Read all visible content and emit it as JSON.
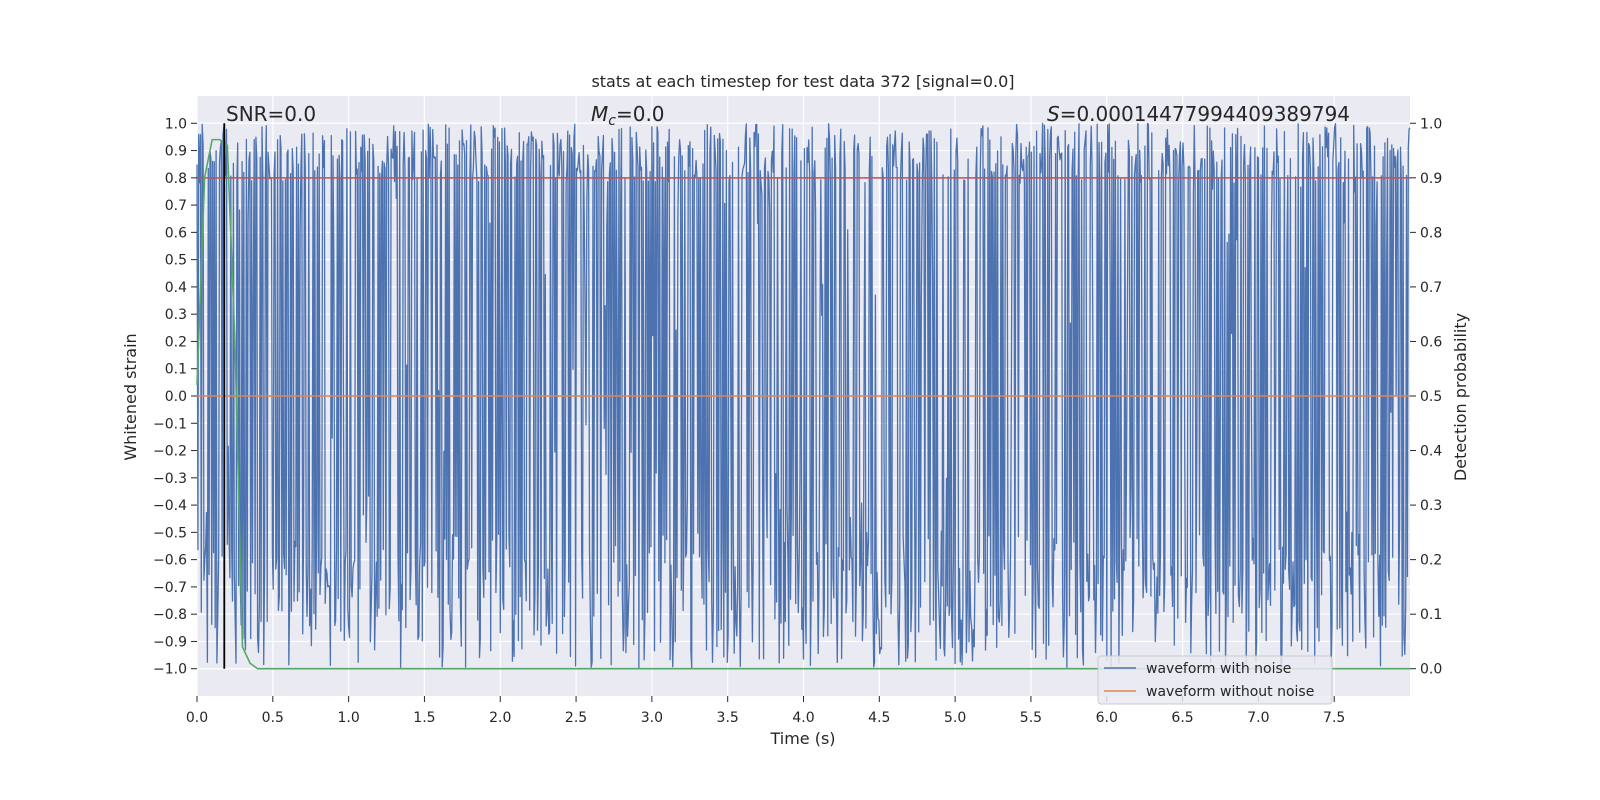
{
  "chart_data": {
    "type": "line",
    "title": "stats at each timestep for test data 372 [signal=0.0]",
    "xlabel": "Time (s)",
    "ylabel_left": "Whitened strain",
    "ylabel_right": "Detection probability",
    "xlim": [
      0.0,
      8.0
    ],
    "ylim_left": [
      -1.1,
      1.1
    ],
    "ylim_right": [
      -0.05,
      1.05
    ],
    "x_ticks": [
      "0.0",
      "0.5",
      "1.0",
      "1.5",
      "2.0",
      "2.5",
      "3.0",
      "3.5",
      "4.0",
      "4.5",
      "5.0",
      "5.5",
      "6.0",
      "6.5",
      "7.0",
      "7.5"
    ],
    "y_ticks_left": [
      "1.0",
      "0.9",
      "0.8",
      "0.7",
      "0.6",
      "0.5",
      "0.4",
      "0.3",
      "0.2",
      "0.1",
      "0.0",
      "−0.1",
      "−0.2",
      "−0.3",
      "−0.4",
      "−0.5",
      "−0.6",
      "−0.7",
      "−0.8",
      "−0.9",
      "−1.0"
    ],
    "y_ticks_right": [
      "1.0",
      "0.9",
      "0.8",
      "0.7",
      "0.6",
      "0.5",
      "0.4",
      "0.3",
      "0.2",
      "0.1",
      "0.0"
    ],
    "grid": true,
    "legend_placement": "lower-right",
    "annotations": {
      "snr": "SNR=0.0",
      "mc_symbol": "M",
      "mc_sub": "c",
      "mc_value": "=0.0",
      "s_symbol": "S",
      "s_value": "=0.00014477994409389794"
    },
    "series": [
      {
        "name": "waveform with noise",
        "color": "#4c72b0",
        "description_values": "dense whitened noise spanning roughly -1.0 to 1.0 across 0–8 s"
      },
      {
        "name": "waveform without noise",
        "color": "#dd8452",
        "x": [
          0.0,
          8.0
        ],
        "y": [
          0.0,
          0.0
        ]
      },
      {
        "name": "",
        "color": "#55a868",
        "axis": "right",
        "x": [
          0.0,
          0.05,
          0.1,
          0.15,
          0.2,
          0.25,
          0.3,
          0.35,
          0.4,
          8.0
        ],
        "y": [
          0.52,
          0.9,
          0.97,
          0.97,
          0.96,
          0.6,
          0.04,
          0.01,
          0.0,
          0.0
        ]
      },
      {
        "name": "",
        "color": "#c44e52",
        "axis": "right",
        "x": [
          0.0,
          8.0
        ],
        "y": [
          0.9,
          0.9
        ]
      }
    ],
    "vertical_marker": {
      "x": 0.18,
      "color": "#000000"
    }
  },
  "colors": {
    "plot_background": "#eaeaf2",
    "grid": "#ffffff",
    "noise": "#4c72b0",
    "clean": "#dd8452",
    "probability": "#55a868",
    "threshold": "#c44e52"
  }
}
